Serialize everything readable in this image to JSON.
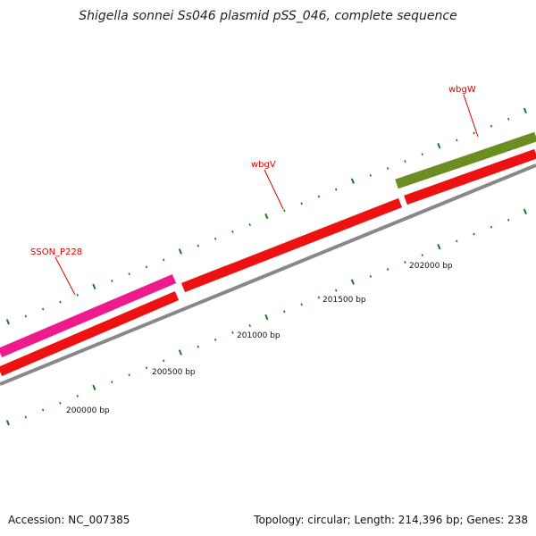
{
  "title": "Shigella sonnei Ss046 plasmid pSS_046, complete sequence",
  "footer": {
    "accession": "Accession: NC_007385",
    "summary": "Topology: circular; Length: 214,396 bp; Genes: 238"
  },
  "genes": [
    {
      "name": "SSON_P228",
      "color": "#ee1b8d"
    },
    {
      "name": "wbgV",
      "color": "#ee1111"
    },
    {
      "name": "wbgW",
      "color": "#6b8e23"
    }
  ],
  "ruler": {
    "labels": [
      "200000 bp",
      "200500 bp",
      "201000 bp",
      "201500 bp",
      "202000 bp"
    ]
  },
  "colors": {
    "backbone": "#888888",
    "forward_feature": "#ee1111",
    "tick": "#1a7a1a",
    "label": "#e00000"
  }
}
